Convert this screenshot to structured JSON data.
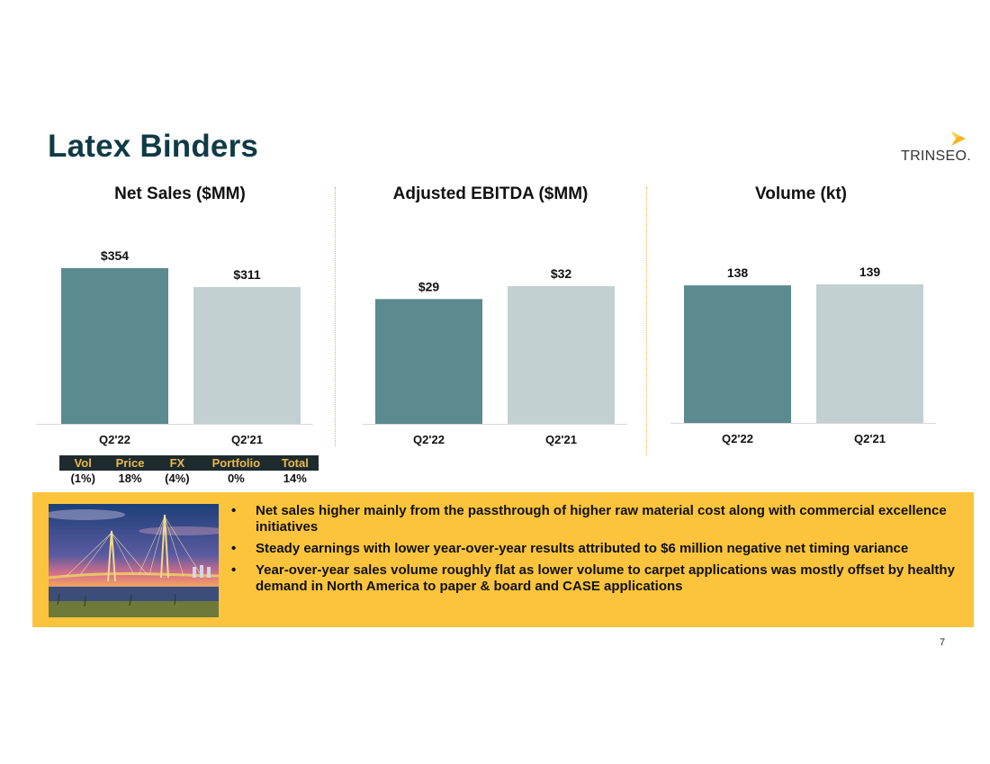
{
  "slide": {
    "title": "Latex Binders",
    "page_number": "7",
    "logo_text": "TRINSEO."
  },
  "chart_data": [
    {
      "type": "bar",
      "title": "Net Sales ($MM)",
      "categories": [
        "Q2'22",
        "Q2'21"
      ],
      "values": [
        354,
        311
      ],
      "data_labels": [
        "$354",
        "$311"
      ],
      "colors": [
        "#5b8a8f",
        "#c2d0d1"
      ]
    },
    {
      "type": "bar",
      "title": "Adjusted EBITDA ($MM)",
      "categories": [
        "Q2'22",
        "Q2'21"
      ],
      "values": [
        29,
        32
      ],
      "data_labels": [
        "$29",
        "$32"
      ],
      "colors": [
        "#5b8a8f",
        "#c2d0d1"
      ]
    },
    {
      "type": "bar",
      "title": "Volume (kt)",
      "categories": [
        "Q2'22",
        "Q2'21"
      ],
      "values": [
        138,
        139
      ],
      "data_labels": [
        "138",
        "139"
      ],
      "colors": [
        "#5b8a8f",
        "#c2d0d1"
      ]
    }
  ],
  "breakdown": {
    "headers": [
      "Vol",
      "Price",
      "FX",
      "Portfolio",
      "Total"
    ],
    "values": [
      "(1%)",
      "18%",
      "(4%)",
      "0%",
      "14%"
    ]
  },
  "callout": {
    "bullet_char": "•",
    "bullets": [
      "Net sales higher mainly from the passthrough of higher raw material cost along with commercial excellence initiatives",
      "Steady earnings with lower year-over-year results attributed to $6 million negative net timing variance",
      "Year-over-year sales volume roughly flat as lower volume to carpet applications was mostly offset by healthy demand in North America to paper & board and CASE applications"
    ]
  },
  "colors": {
    "title": "#0f3b46",
    "accent": "#fbc43c",
    "bar_current": "#5b8a8f",
    "bar_prior": "#c2d0d1"
  }
}
